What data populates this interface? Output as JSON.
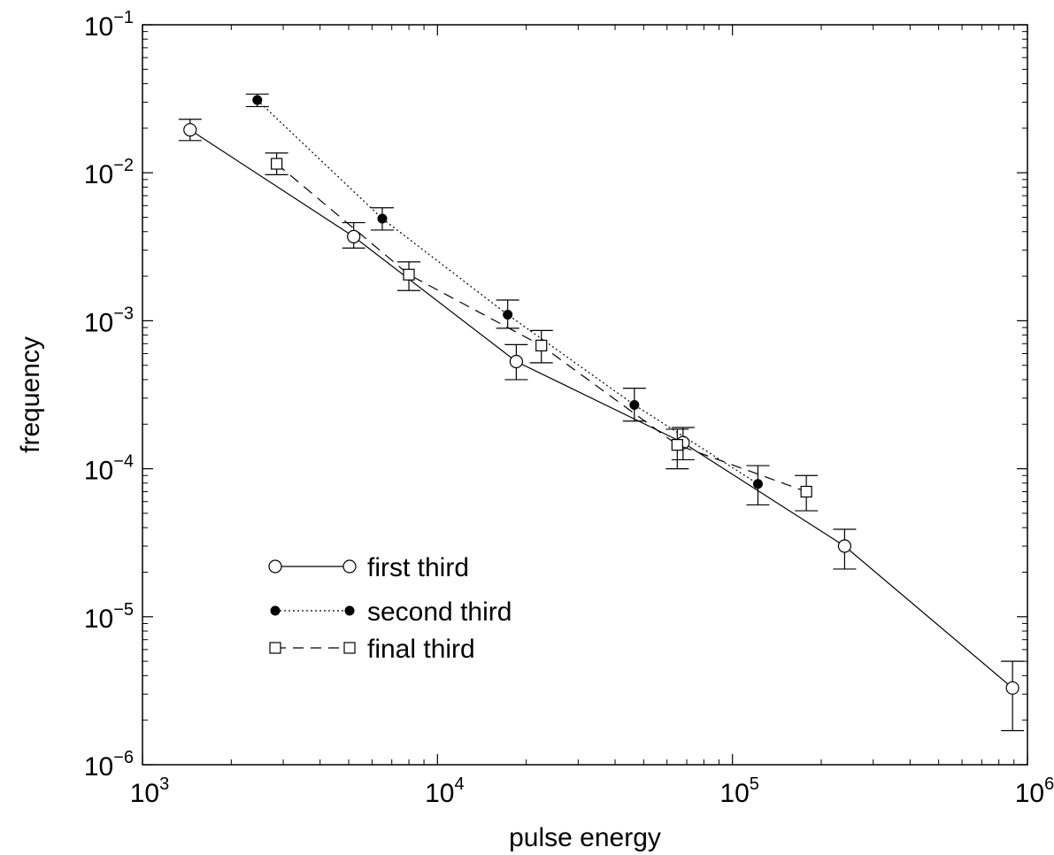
{
  "chart_data": {
    "type": "scatter",
    "title": "",
    "xlabel": "pulse energy",
    "ylabel": "frequency",
    "xscale": "log",
    "yscale": "log",
    "xlim": [
      1000,
      1000000
    ],
    "ylim": [
      1e-06,
      0.1
    ],
    "grid": false,
    "legend_position": "bottom-left",
    "x_ticks": [
      {
        "base": "10",
        "exp": "3"
      },
      {
        "base": "10",
        "exp": "4"
      },
      {
        "base": "10",
        "exp": "5"
      },
      {
        "base": "10",
        "exp": "6"
      }
    ],
    "y_ticks": [
      {
        "base": "10",
        "exp": "−6"
      },
      {
        "base": "10",
        "exp": "−5"
      },
      {
        "base": "10",
        "exp": "−4"
      },
      {
        "base": "10",
        "exp": "−3"
      },
      {
        "base": "10",
        "exp": "−2"
      },
      {
        "base": "10",
        "exp": "−1"
      }
    ],
    "series": [
      {
        "name": "first third",
        "marker": "open-circle",
        "line": "solid",
        "points": [
          {
            "x": 1450,
            "y": 0.0195,
            "lo": 0.0165,
            "hi": 0.023
          },
          {
            "x": 5200,
            "y": 0.0037,
            "lo": 0.0031,
            "hi": 0.0046
          },
          {
            "x": 18500,
            "y": 0.00053,
            "lo": 0.0004,
            "hi": 0.00069
          },
          {
            "x": 68000,
            "y": 0.00015,
            "lo": 0.000115,
            "hi": 0.00019
          },
          {
            "x": 240000,
            "y": 3e-05,
            "lo": 2.1e-05,
            "hi": 3.9e-05
          },
          {
            "x": 890000,
            "y": 3.3e-06,
            "lo": 1.7e-06,
            "hi": 5e-06
          }
        ]
      },
      {
        "name": "second third",
        "marker": "filled-circle",
        "line": "dotted",
        "points": [
          {
            "x": 2450,
            "y": 0.031,
            "lo": 0.028,
            "hi": 0.034
          },
          {
            "x": 6500,
            "y": 0.0049,
            "lo": 0.0041,
            "hi": 0.0058
          },
          {
            "x": 17300,
            "y": 0.0011,
            "lo": 0.00089,
            "hi": 0.00138
          },
          {
            "x": 46500,
            "y": 0.00027,
            "lo": 0.00021,
            "hi": 0.00035
          },
          {
            "x": 122000,
            "y": 7.9e-05,
            "lo": 5.7e-05,
            "hi": 0.000105
          }
        ]
      },
      {
        "name": "final third",
        "marker": "open-square",
        "line": "dashed",
        "points": [
          {
            "x": 2850,
            "y": 0.0115,
            "lo": 0.0097,
            "hi": 0.0136
          },
          {
            "x": 8000,
            "y": 0.00205,
            "lo": 0.0016,
            "hi": 0.0025
          },
          {
            "x": 22500,
            "y": 0.00068,
            "lo": 0.00052,
            "hi": 0.00086
          },
          {
            "x": 65000,
            "y": 0.000145,
            "lo": 0.0001,
            "hi": 0.000185
          },
          {
            "x": 178000,
            "y": 7e-05,
            "lo": 5.2e-05,
            "hi": 9e-05
          }
        ]
      }
    ]
  }
}
